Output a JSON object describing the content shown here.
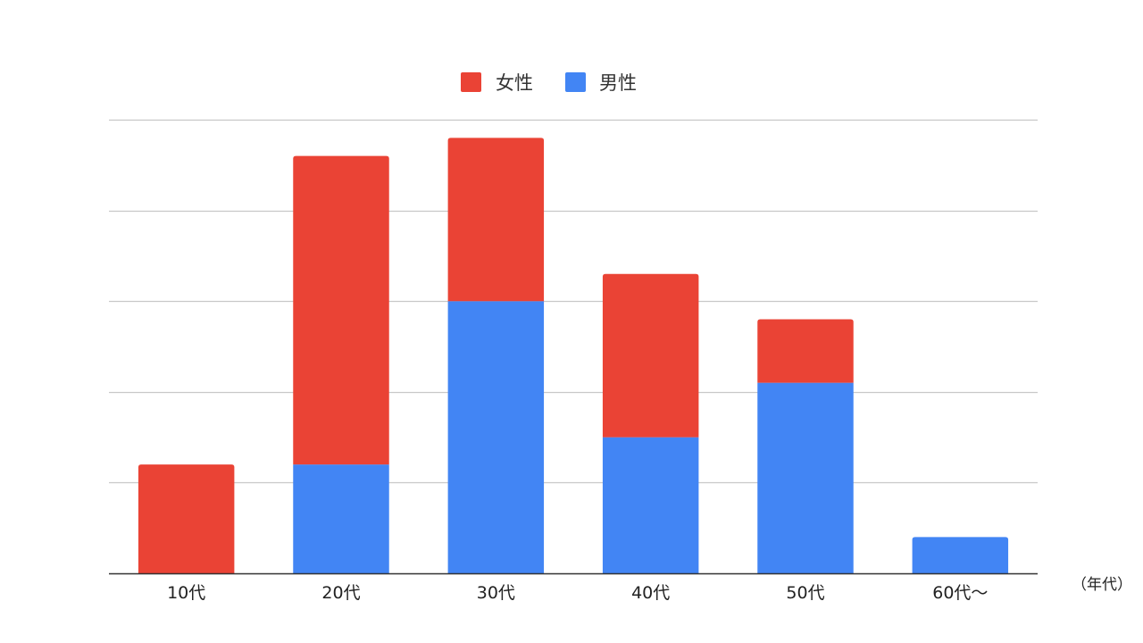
{
  "chart_data": {
    "type": "bar",
    "stacked": true,
    "categories": [
      "10代",
      "20代",
      "30代",
      "40代",
      "50代",
      "60代〜"
    ],
    "series": [
      {
        "name": "男性",
        "color": "#4285f4",
        "values": [
          0,
          1.2,
          3.0,
          1.5,
          2.1,
          0.4
        ]
      },
      {
        "name": "女性",
        "color": "#ea4335",
        "values": [
          1.2,
          3.4,
          1.8,
          1.8,
          0.7,
          0
        ]
      }
    ],
    "ylim": [
      0,
      5
    ],
    "grid": true,
    "y_ticks_shown": false,
    "legend": {
      "position": "top-center",
      "items": [
        {
          "label": "女性",
          "color": "#ea4335"
        },
        {
          "label": "男性",
          "color": "#4285f4"
        }
      ]
    },
    "x_unit_label": "（年代）",
    "title": "",
    "xlabel": "",
    "ylabel": ""
  }
}
